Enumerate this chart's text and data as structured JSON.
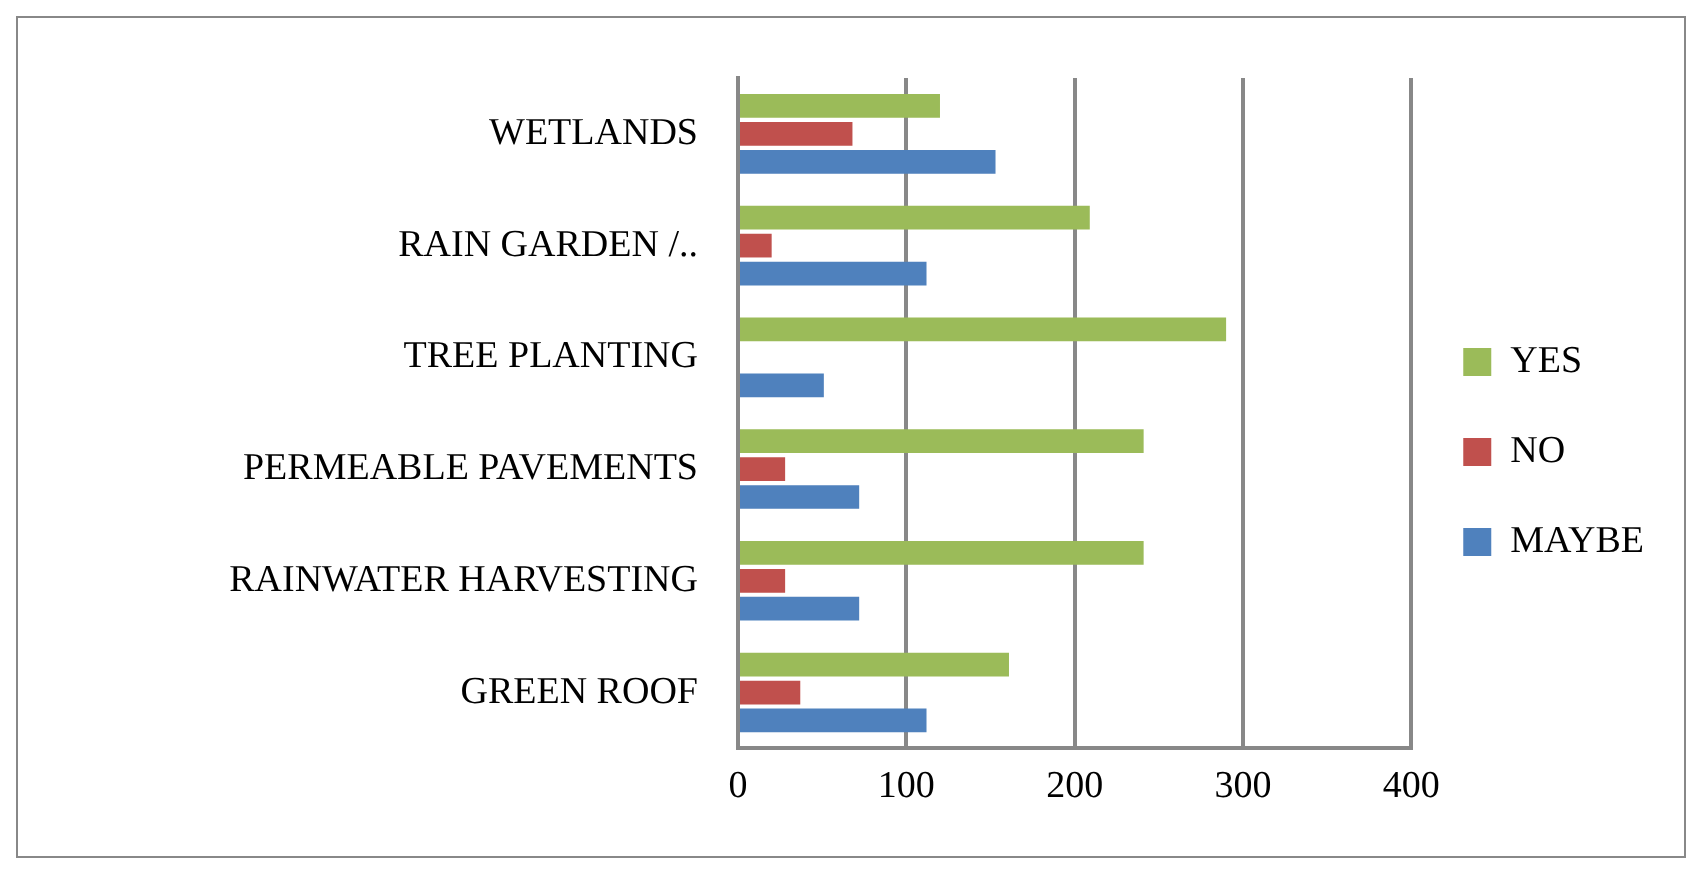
{
  "chart_data": {
    "type": "bar",
    "orientation": "horizontal",
    "categories": [
      "WETLANDS",
      "RAIN GARDEN /..",
      "TREE PLANTING",
      "PERMEABLE PAVEMENTS",
      "RAINWATER HARVESTING",
      "GREEN ROOF"
    ],
    "series": [
      {
        "name": "YES",
        "color": "#9bbb59",
        "values": [
          120,
          209,
          290,
          241,
          241,
          161
        ]
      },
      {
        "name": "NO",
        "color": "#c0504d",
        "values": [
          68,
          20,
          0,
          28,
          28,
          37
        ]
      },
      {
        "name": "MAYBE",
        "color": "#4f81bd",
        "values": [
          153,
          112,
          51,
          72,
          72,
          112
        ]
      }
    ],
    "xlim": [
      0,
      400
    ],
    "xticks": [
      0,
      100,
      200,
      300,
      400
    ],
    "grid": "x",
    "legend": "right"
  }
}
